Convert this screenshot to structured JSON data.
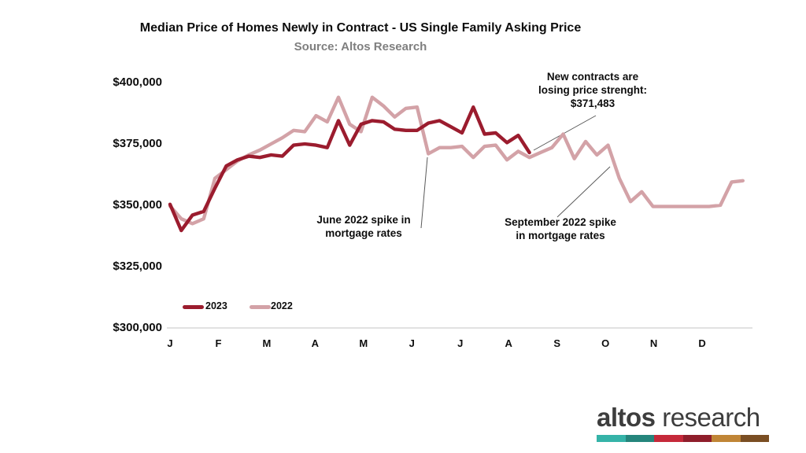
{
  "header": {
    "title": "Median Price of Homes Newly in Contract - US Single Family Asking Price",
    "subtitle": "Source: Altos Research"
  },
  "chart_data": {
    "type": "line",
    "title": "Median Price of Homes Newly in Contract - US Single Family Asking Price",
    "subtitle": "Source: Altos Research",
    "x_unit": "weekly, January through December",
    "months": [
      "J",
      "F",
      "M",
      "A",
      "M",
      "J",
      "J",
      "A",
      "S",
      "O",
      "N",
      "D"
    ],
    "ylim": [
      300000,
      400000
    ],
    "grid": "off",
    "axis_color": "#D9D9D9",
    "pointer_color": "#595959",
    "y_ticks": [
      {
        "label": "$400,000",
        "value": 400000
      },
      {
        "label": "$375,000",
        "value": 375000
      },
      {
        "label": "$350,000",
        "value": 350000
      },
      {
        "label": "$325,000",
        "value": 325000
      },
      {
        "label": "$300,000",
        "value": 300000
      }
    ],
    "series": [
      {
        "name": "2023",
        "color": "#9B1C2E",
        "final_value_label": "$371,483",
        "values": [
          350400,
          339700,
          346000,
          347500,
          357000,
          366000,
          368500,
          370000,
          369500,
          370500,
          370000,
          374500,
          375000,
          374500,
          373500,
          384500,
          374500,
          383000,
          384500,
          384000,
          381000,
          380500,
          380500,
          383500,
          384500,
          382000,
          379500,
          390000,
          379000,
          379500,
          375500,
          378500,
          371483
        ]
      },
      {
        "name": "2022",
        "color": "#D3A2A7",
        "values": [
          349700,
          344500,
          342500,
          344500,
          361000,
          364500,
          368000,
          370500,
          372500,
          375000,
          377500,
          380500,
          380000,
          386500,
          384000,
          394000,
          383000,
          380000,
          394000,
          390500,
          386000,
          389500,
          390000,
          371000,
          373500,
          373500,
          374000,
          369500,
          374000,
          374500,
          368500,
          372000,
          369500,
          371500,
          373500,
          379000,
          369000,
          376000,
          370500,
          374500,
          361000,
          351500,
          355500,
          349500,
          349500,
          349500,
          349500,
          349500,
          349500,
          350000,
          359500,
          360000
        ]
      }
    ],
    "annotations": {
      "new_contracts": {
        "lines": [
          "New contracts are",
          "losing price strenght:",
          "$371,483"
        ]
      },
      "june": {
        "lines": [
          "June 2022 spike in",
          "mortgage rates"
        ]
      },
      "september": {
        "lines": [
          "September 2022 spike",
          "in mortgage rates"
        ]
      }
    },
    "legend_position": "bottom-left inside plot"
  },
  "legend": {
    "items": [
      {
        "label": "2023",
        "color": "#9B1C2E"
      },
      {
        "label": "2022",
        "color": "#D3A2A7"
      }
    ]
  },
  "logo": {
    "name_bold": "altos",
    "name_light": "research",
    "bar_colors": [
      "#35B3A8",
      "#25857C",
      "#C5293A",
      "#8F1E2B",
      "#C08536",
      "#7A4E23"
    ]
  }
}
